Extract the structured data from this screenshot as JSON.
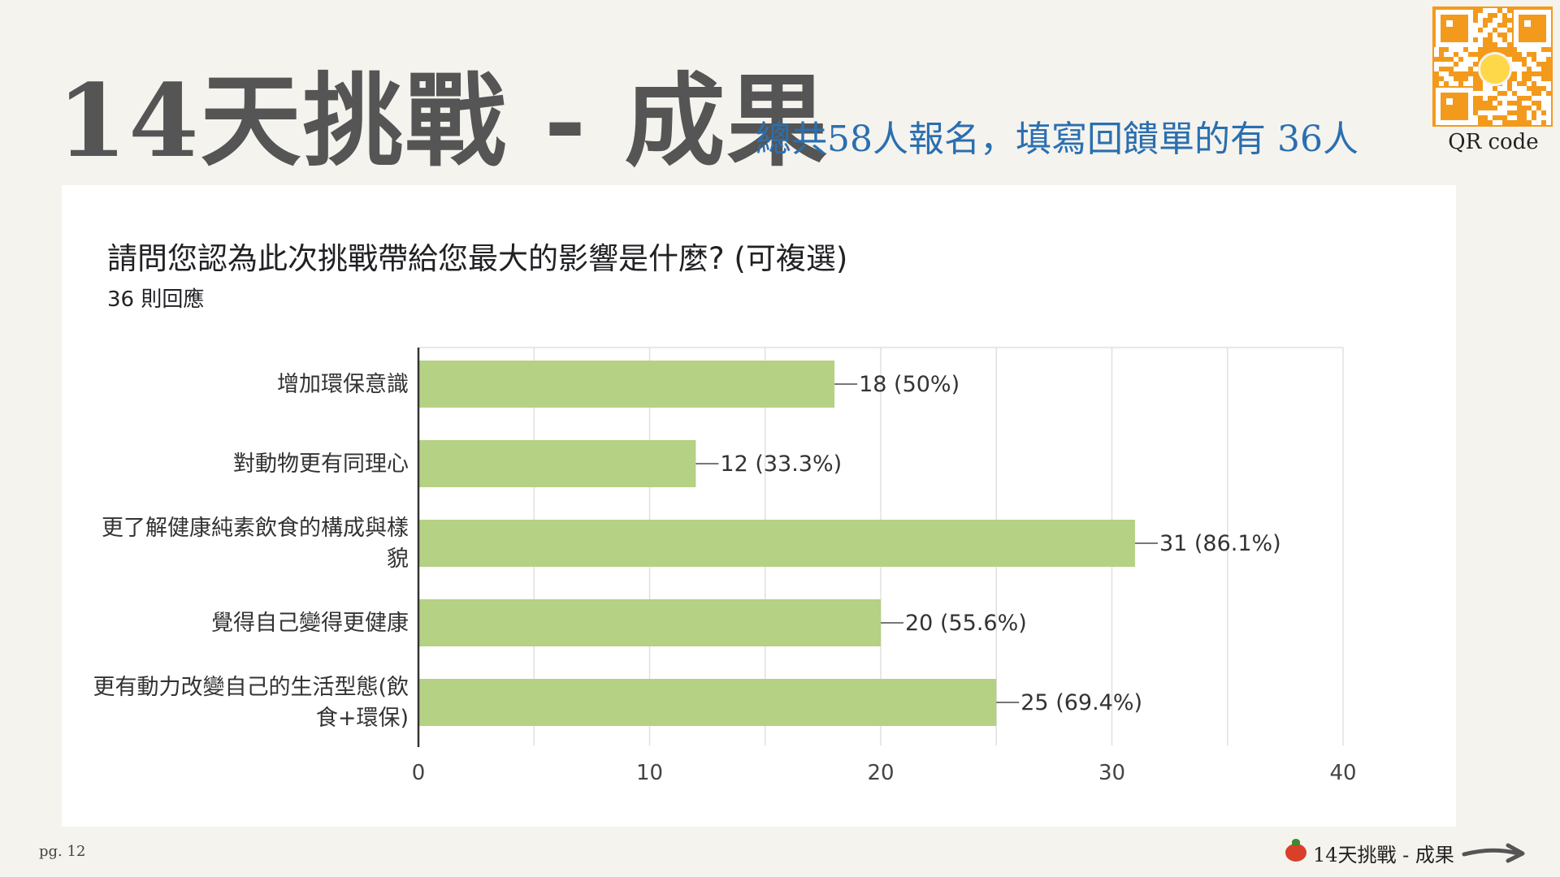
{
  "slide": {
    "title": "14天挑戰 - 成果",
    "subtitle": "總共58人報名，填寫回饋單的有 36人",
    "qr_caption": "QR code",
    "page_label": "pg. 12",
    "footer_label": "14天挑戰 - 成果",
    "colors": {
      "title": "#555555",
      "subtitle": "#2a6fb0",
      "bar": "#b5d184"
    }
  },
  "question": {
    "title": "請問您認為此次挑戰帶給您最大的影響是什麼? (可複選)",
    "responses": "36 則回應"
  },
  "chart_data": {
    "type": "bar",
    "orientation": "horizontal",
    "categories": [
      [
        "增加環保意識"
      ],
      [
        "對動物更有同理心"
      ],
      [
        "更了解健康純素飲食的構成與樣",
        "貌"
      ],
      [
        "覺得自己變得更健康"
      ],
      [
        "更有動力改變自己的生活型態(飲",
        "食+環保)"
      ]
    ],
    "values": [
      18,
      12,
      31,
      20,
      25
    ],
    "data_labels": [
      "18 (50%)",
      "12 (33.3%)",
      "31 (86.1%)",
      "20 (55.6%)",
      "25 (69.4%)"
    ],
    "xlim": [
      0,
      40
    ],
    "x_ticks": [
      0,
      10,
      20,
      30,
      40
    ],
    "grid": true,
    "legend": "none",
    "bar_color": "#b5d184"
  }
}
